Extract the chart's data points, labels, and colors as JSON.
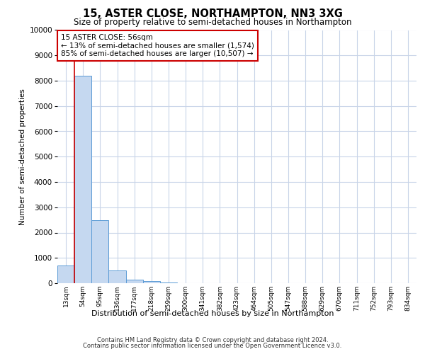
{
  "title_line1": "15, ASTER CLOSE, NORTHAMPTON, NN3 3XG",
  "title_line2": "Size of property relative to semi-detached houses in Northampton",
  "xlabel": "Distribution of semi-detached houses by size in Northampton",
  "ylabel": "Number of semi-detached properties",
  "footer_line1": "Contains HM Land Registry data © Crown copyright and database right 2024.",
  "footer_line2": "Contains public sector information licensed under the Open Government Licence v3.0.",
  "categories": [
    "13sqm",
    "54sqm",
    "95sqm",
    "136sqm",
    "177sqm",
    "218sqm",
    "259sqm",
    "300sqm",
    "341sqm",
    "382sqm",
    "423sqm",
    "464sqm",
    "505sqm",
    "547sqm",
    "588sqm",
    "629sqm",
    "670sqm",
    "711sqm",
    "752sqm",
    "793sqm",
    "834sqm"
  ],
  "values": [
    700,
    8200,
    2500,
    500,
    150,
    80,
    30,
    5,
    0,
    0,
    0,
    0,
    0,
    0,
    0,
    0,
    0,
    0,
    0,
    0,
    0
  ],
  "bar_color": "#c5d8f0",
  "bar_edge_color": "#5b9bd5",
  "marker_color": "#cc0000",
  "ylim": [
    0,
    10000
  ],
  "yticks": [
    0,
    1000,
    2000,
    3000,
    4000,
    5000,
    6000,
    7000,
    8000,
    9000,
    10000
  ],
  "annotation_title": "15 ASTER CLOSE: 56sqm",
  "annotation_line1": "← 13% of semi-detached houses are smaller (1,574)",
  "annotation_line2": "85% of semi-detached houses are larger (10,507) →",
  "bg_color": "#ffffff",
  "grid_color": "#c8d4e8",
  "annotation_box_color": "#cc0000"
}
